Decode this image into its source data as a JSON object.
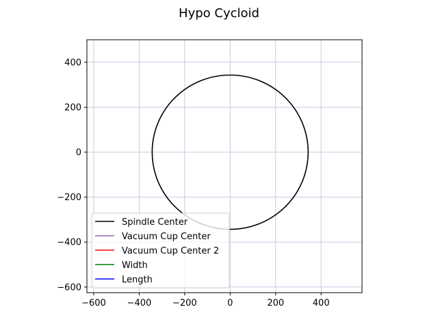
{
  "chart_data": {
    "type": "line",
    "title": "Hypo Cycloid",
    "xlabel": "",
    "ylabel": "",
    "xlim": [
      -630,
      580
    ],
    "ylim": [
      -625,
      500
    ],
    "xticks": [
      -600,
      -400,
      -200,
      0,
      200,
      400
    ],
    "xtick_labels": [
      "−600",
      "−400",
      "−200",
      "0",
      "200",
      "400"
    ],
    "yticks": [
      -600,
      -400,
      -200,
      0,
      200,
      400
    ],
    "ytick_labels": [
      "−600",
      "−400",
      "−200",
      "0",
      "200",
      "400"
    ],
    "grid": true,
    "grid_color": "#c8c8e6",
    "legend_position": "lower-left",
    "series": [
      {
        "name": "Spindle Center",
        "color": "#000000",
        "shape": "circle",
        "center": [
          0,
          0
        ],
        "radius": 343
      },
      {
        "name": "Vacuum Cup Center",
        "color": "#9467bd",
        "points": []
      },
      {
        "name": "Vacuum Cup Center 2",
        "color": "#ff0000",
        "points": []
      },
      {
        "name": "Width",
        "color": "#008000",
        "points": []
      },
      {
        "name": "Length",
        "color": "#0000ff",
        "points": []
      }
    ]
  }
}
